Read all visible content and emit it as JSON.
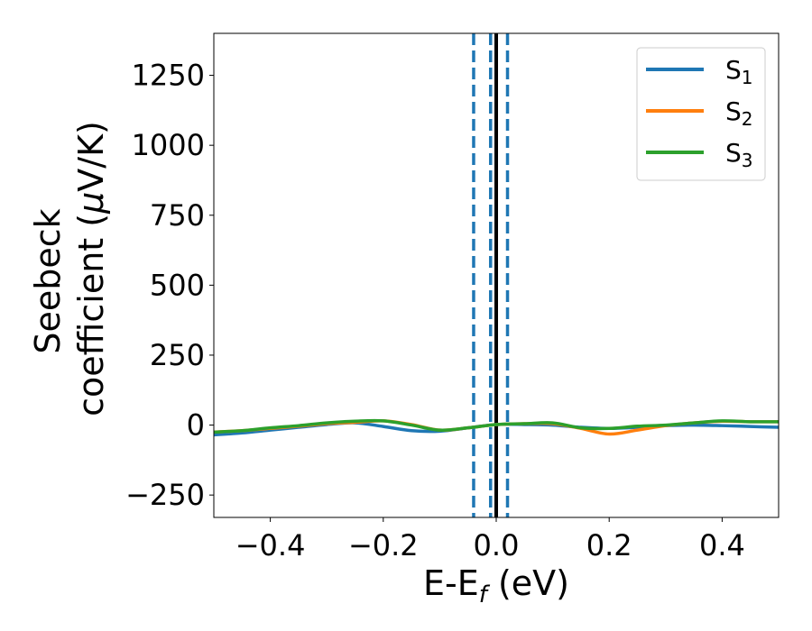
{
  "chart_data": {
    "type": "line",
    "xlabel": "E-E",
    "xlabel_sub": "f",
    "xlabel_unit": " (eV)",
    "ylabel_line1": "Seebeck",
    "ylabel_line2": "coefficient  (",
    "ylabel_mu": "μ",
    "ylabel_unit": "V/K)",
    "xlim": [
      -0.5,
      0.5
    ],
    "ylim": [
      -330,
      1400
    ],
    "xticks": [
      -0.4,
      -0.2,
      0.0,
      0.2,
      0.4
    ],
    "xtick_labels": [
      "−0.4",
      "−0.2",
      "0.0",
      "0.2",
      "0.4"
    ],
    "yticks": [
      -250,
      0,
      250,
      500,
      750,
      1000,
      1250
    ],
    "ytick_labels": [
      "−250",
      "0",
      "250",
      "500",
      "750",
      "1000",
      "1250"
    ],
    "legend_position": "top-right",
    "series": [
      {
        "name": "S",
        "sub": "1",
        "color": "#1f77b4",
        "x": [
          -0.5,
          -0.45,
          -0.4,
          -0.35,
          -0.3,
          -0.25,
          -0.2,
          -0.15,
          -0.1,
          -0.05,
          0.0,
          0.05,
          0.1,
          0.15,
          0.2,
          0.25,
          0.3,
          0.35,
          0.4,
          0.45,
          0.5
        ],
        "y": [
          -35,
          -28,
          -18,
          -8,
          2,
          8,
          -5,
          -20,
          -22,
          -10,
          2,
          2,
          0,
          -8,
          -12,
          -8,
          -2,
          0,
          -2,
          -5,
          -8
        ]
      },
      {
        "name": "S",
        "sub": "2",
        "color": "#ff7f0e",
        "x": [
          -0.5,
          -0.45,
          -0.4,
          -0.35,
          -0.3,
          -0.25,
          -0.2,
          -0.15,
          -0.1,
          -0.05,
          0.0,
          0.05,
          0.1,
          0.15,
          0.2,
          0.25,
          0.3,
          0.35,
          0.4,
          0.45,
          0.5
        ],
        "y": [
          -25,
          -20,
          -12,
          -4,
          5,
          10,
          15,
          2,
          -18,
          -10,
          2,
          5,
          5,
          -12,
          -32,
          -18,
          -2,
          8,
          14,
          12,
          12
        ]
      },
      {
        "name": "S",
        "sub": "3",
        "color": "#2ca02c",
        "x": [
          -0.5,
          -0.45,
          -0.4,
          -0.35,
          -0.3,
          -0.25,
          -0.2,
          -0.15,
          -0.1,
          -0.05,
          0.0,
          0.05,
          0.1,
          0.15,
          0.2,
          0.25,
          0.3,
          0.35,
          0.4,
          0.45,
          0.5
        ],
        "y": [
          -25,
          -20,
          -10,
          -2,
          8,
          14,
          15,
          0,
          -18,
          -10,
          2,
          5,
          8,
          -10,
          -12,
          -4,
          0,
          8,
          15,
          12,
          12
        ]
      }
    ],
    "vlines": [
      {
        "x": -0.04,
        "style": "dashed",
        "color": "#1f77b4"
      },
      {
        "x": -0.01,
        "style": "dashed",
        "color": "#1f77b4"
      },
      {
        "x": 0.02,
        "style": "dashed",
        "color": "#1f77b4"
      },
      {
        "x": 0.0,
        "style": "solid",
        "color": "#000000"
      }
    ]
  }
}
